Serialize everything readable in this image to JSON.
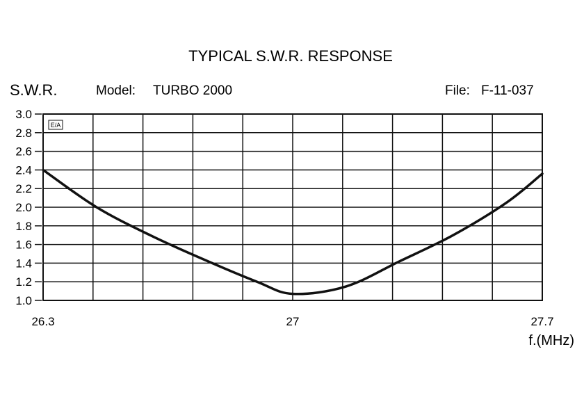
{
  "chart_data": {
    "type": "line",
    "title": "TYPICAL S.W.R. RESPONSE",
    "ylabel": "S.W.R.",
    "xlabel": "f.(MHz)",
    "model_label": "Model:",
    "model_value": "TURBO 2000",
    "file_label": "File:",
    "file_value": "F-11-037",
    "corner_mark": "E/A",
    "xlim": [
      26.3,
      27.7
    ],
    "ylim": [
      1.0,
      3.0
    ],
    "x_ticks": [
      "26.3",
      "27",
      "27.7"
    ],
    "y_ticks": [
      "1.0",
      "1.2",
      "1.4",
      "1.6",
      "1.8",
      "2.0",
      "2.2",
      "2.4",
      "2.6",
      "2.8",
      "3.0"
    ],
    "grid": true,
    "series": [
      {
        "x": [
          26.3,
          26.45,
          26.6,
          26.75,
          26.9,
          27.0,
          27.15,
          27.3,
          27.45,
          27.6,
          27.7
        ],
        "y": [
          2.4,
          2.0,
          1.7,
          1.44,
          1.2,
          1.07,
          1.15,
          1.42,
          1.7,
          2.05,
          2.36
        ]
      }
    ]
  }
}
